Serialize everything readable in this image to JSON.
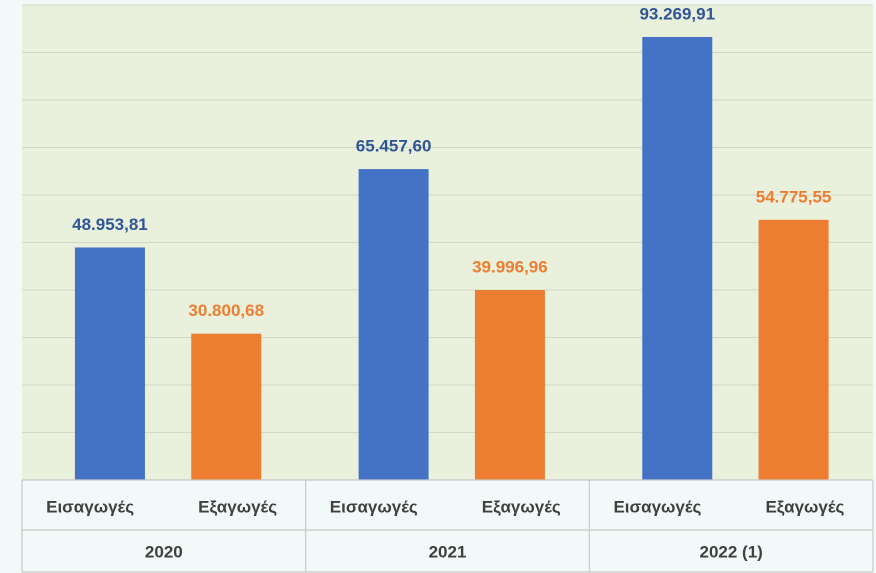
{
  "chart_data": {
    "type": "bar",
    "categories": [
      "2020",
      "2021",
      "2022 (1)"
    ],
    "series": [
      {
        "name": "Εισαγωγές",
        "color": "#4472c4",
        "label_color": "#2f5597",
        "values": [
          48953.81,
          65457.6,
          93269.91
        ],
        "value_labels": [
          "48.953,81",
          "65.457,60",
          "93.269,91"
        ]
      },
      {
        "name": "Εξαγωγές",
        "color": "#ed7d31",
        "label_color": "#ed7d31",
        "values": [
          30800.68,
          39996.96,
          54775.55
        ],
        "value_labels": [
          "30.800,68",
          "39.996,96",
          "54.775,55"
        ]
      }
    ],
    "ylim": [
      0,
      100000
    ],
    "yticks": [
      0,
      10000,
      20000,
      30000,
      40000,
      50000,
      60000,
      70000,
      80000,
      90000,
      100000
    ],
    "grid": true
  }
}
